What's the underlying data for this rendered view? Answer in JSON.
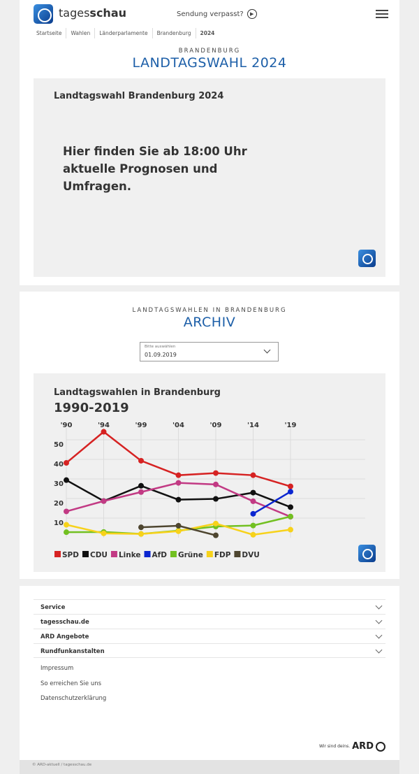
{
  "header": {
    "brand_light": "tages",
    "brand_bold": "schau",
    "missed": "Sendung verpasst?",
    "play_icon": "play-circle-icon",
    "menu_icon": "hamburger-icon"
  },
  "breadcrumb": [
    "Startseite",
    "Wahlen",
    "Länderparlamente",
    "Brandenburg",
    "2024"
  ],
  "section1": {
    "kicker": "BRANDENBURG",
    "title": "LANDTAGSWAHL 2024",
    "panel_title": "Landtagswahl Brandenburg 2024",
    "panel_text": "Hier finden Sie ab 18:00 Uhr aktuelle Prognosen und Umfragen."
  },
  "section2": {
    "kicker": "LANDTAGSWAHLEN IN BRANDENBURG",
    "title": "ARCHIV",
    "select_label": "Bitte auswählen",
    "select_value": "01.09.2019"
  },
  "chart_data": {
    "type": "line",
    "title": "Landtagswahlen in Brandenburg",
    "subtitle": "1990-2019",
    "categories": [
      "'90",
      "'94",
      "'99",
      "'04",
      "'09",
      "'14",
      "'19"
    ],
    "yticks": [
      10,
      20,
      30,
      40,
      50
    ],
    "ylim": [
      0,
      55
    ],
    "grid": true,
    "legend_placement": "bottom-left",
    "series": [
      {
        "name": "SPD",
        "color": "#d62222",
        "values": [
          38.2,
          54.1,
          39.3,
          31.9,
          33.0,
          31.9,
          26.2
        ]
      },
      {
        "name": "CDU",
        "color": "#111111",
        "values": [
          29.4,
          18.7,
          26.5,
          19.4,
          19.8,
          23.0,
          15.6
        ]
      },
      {
        "name": "Linke",
        "color": "#c23a84",
        "values": [
          13.4,
          18.7,
          23.3,
          28.0,
          27.2,
          18.6,
          10.7
        ]
      },
      {
        "name": "AfD",
        "color": "#0b26d0",
        "values": [
          null,
          null,
          null,
          null,
          null,
          12.2,
          23.5
        ]
      },
      {
        "name": "Grüne",
        "color": "#72c021",
        "values": [
          2.8,
          2.9,
          1.9,
          3.6,
          5.7,
          6.2,
          10.8
        ]
      },
      {
        "name": "FDP",
        "color": "#f7d21b",
        "values": [
          6.6,
          2.2,
          1.9,
          3.3,
          7.2,
          1.5,
          4.1
        ]
      },
      {
        "name": "DVU",
        "color": "#4e4630",
        "values": [
          null,
          null,
          5.3,
          6.1,
          1.2,
          null,
          null
        ]
      }
    ]
  },
  "footer": {
    "accordion": [
      "Service",
      "tagesschau.de",
      "ARD Angebote",
      "Rundfunkanstalten"
    ],
    "links": [
      "Impressum",
      "So erreichen Sie uns",
      "Datenschutzerklärung"
    ],
    "slogan": "Wir sind deins.",
    "ard": "ARD",
    "copyright": "© ARD-aktuell / tagesschau.de"
  }
}
